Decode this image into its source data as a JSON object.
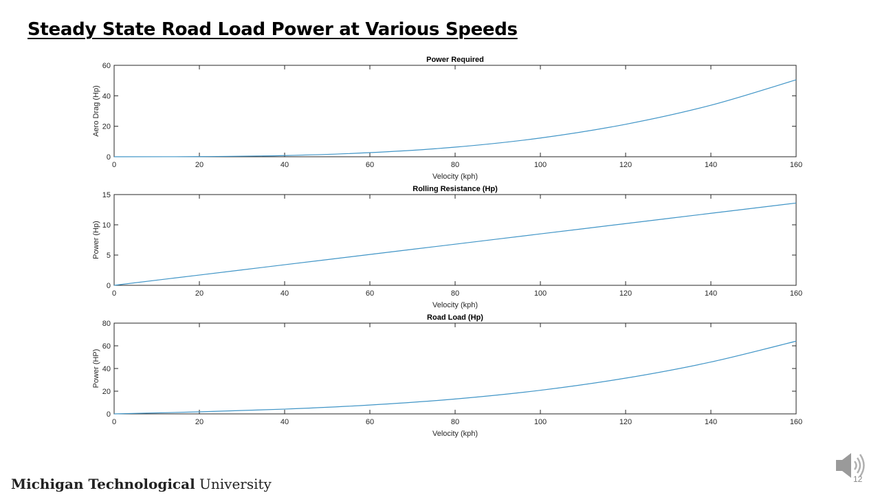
{
  "slide": {
    "title": "Steady State Road Load Power at Various Speeds",
    "footer_bold": "Michigan Technological",
    "footer_regular": " University",
    "page_number": "12",
    "audio_icon": "speaker-icon"
  },
  "colors": {
    "line": "#3f94c6",
    "axis": "#262626",
    "text": "#262626"
  },
  "chart_data": [
    {
      "type": "line",
      "title": "Power Required",
      "xlabel": "Velocity (kph)",
      "ylabel": "Aero Drag (Hp)",
      "xlim": [
        0,
        160
      ],
      "ylim": [
        0,
        60
      ],
      "xticks": [
        0,
        20,
        40,
        60,
        80,
        100,
        120,
        140,
        160
      ],
      "yticks": [
        0,
        20,
        40,
        60
      ],
      "x": [
        0,
        20,
        40,
        60,
        80,
        100,
        120,
        140,
        160
      ],
      "y": [
        0,
        0.1,
        0.8,
        2.7,
        6.3,
        12.3,
        21.3,
        33.8,
        50.5
      ],
      "grid": false
    },
    {
      "type": "line",
      "title": "Rolling Resistance (Hp)",
      "xlabel": "Velocity (kph)",
      "ylabel": "Power (Hp)",
      "xlim": [
        0,
        160
      ],
      "ylim": [
        0,
        15
      ],
      "xticks": [
        0,
        20,
        40,
        60,
        80,
        100,
        120,
        140,
        160
      ],
      "yticks": [
        0,
        5,
        10,
        15
      ],
      "x": [
        0,
        20,
        40,
        60,
        80,
        100,
        120,
        140,
        160
      ],
      "y": [
        0,
        1.7,
        3.4,
        5.1,
        6.8,
        8.5,
        10.2,
        11.9,
        13.6
      ],
      "grid": false
    },
    {
      "type": "line",
      "title": "Road Load (Hp)",
      "xlabel": "Velocity (kph)",
      "ylabel": "Power (HP)",
      "xlim": [
        0,
        160
      ],
      "ylim": [
        0,
        80
      ],
      "xticks": [
        0,
        20,
        40,
        60,
        80,
        100,
        120,
        140,
        160
      ],
      "yticks": [
        0,
        20,
        40,
        60,
        80
      ],
      "x": [
        0,
        20,
        40,
        60,
        80,
        100,
        120,
        140,
        160
      ],
      "y": [
        0,
        1.8,
        4.2,
        7.8,
        13.1,
        20.8,
        31.5,
        45.7,
        64.1
      ],
      "grid": false
    }
  ]
}
